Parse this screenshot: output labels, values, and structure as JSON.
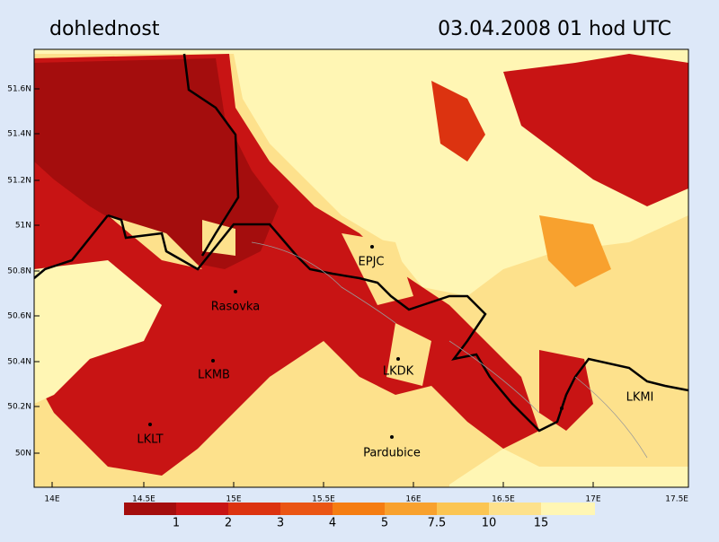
{
  "header": {
    "title": "dohlednost",
    "timestamp": "03.04.2008   01 hod UTC"
  },
  "map": {
    "lat_labels": [
      "51.6N",
      "51.4N",
      "51.2N",
      "51N",
      "50.8N",
      "50.6N",
      "50.4N",
      "50.2N",
      "50N"
    ],
    "lon_labels": [
      "14E",
      "14.5E",
      "15E",
      "15.5E",
      "16E",
      "16.5E",
      "17E",
      "17.5E"
    ],
    "stations": [
      {
        "label": "EPJC"
      },
      {
        "label": "Rasovka"
      },
      {
        "label": "LKMB"
      },
      {
        "label": "LKDK"
      },
      {
        "label": "LKLT"
      },
      {
        "label": "Pardubice"
      },
      {
        "label": "LKMI"
      }
    ]
  },
  "legend": {
    "labels": [
      "1",
      "2",
      "3",
      "4",
      "5",
      "7.5",
      "10",
      "15"
    ],
    "colors": [
      "#a40d0d",
      "#c81414",
      "#dc3310",
      "#ea5514",
      "#f57d12",
      "#f8a12e",
      "#fbc553",
      "#fde18c",
      "#fff6b4"
    ]
  }
}
